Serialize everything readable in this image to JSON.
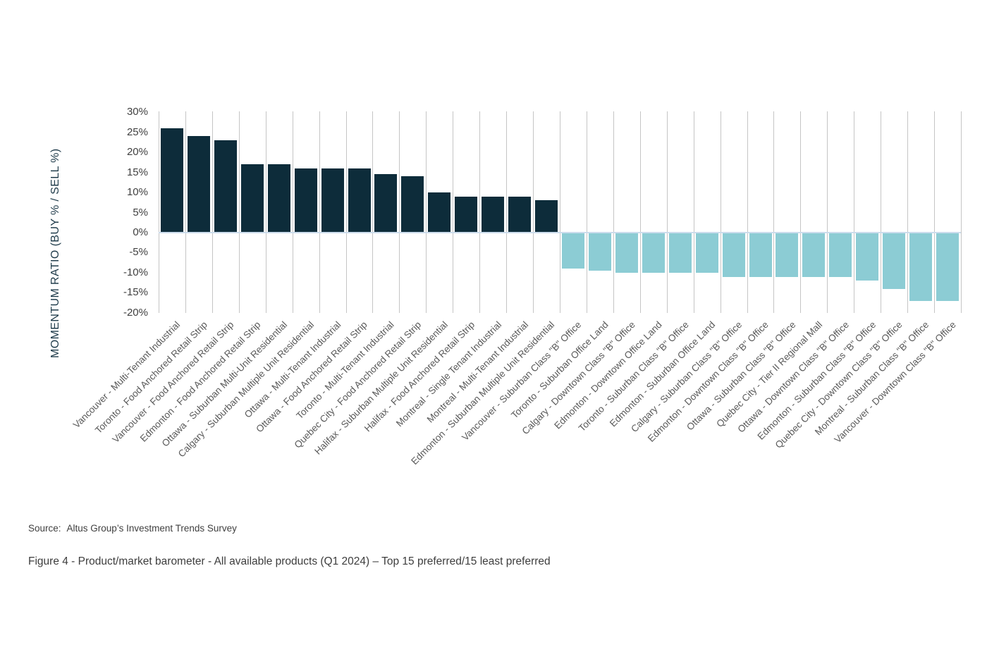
{
  "chart_data": {
    "type": "bar",
    "title": "",
    "xlabel": "",
    "ylabel": "MOMENTUM RATIO (BUY % / SELL %)",
    "ylim": [
      -20,
      30
    ],
    "yticks": [
      30,
      25,
      20,
      15,
      10,
      5,
      0,
      -5,
      -10,
      -15,
      -20
    ],
    "ytick_labels": [
      "30%",
      "25%",
      "20%",
      "15%",
      "10%",
      "5%",
      "0%",
      "-5%",
      "-10%",
      "-15%",
      "-20%"
    ],
    "grid": "vertical-only",
    "legend_position": "none",
    "categories": [
      "Vancouver - Multi-Tenant Industrial",
      "Toronto - Food Anchored Retail Strip",
      "Vancouver - Food Anchored Retail Strip",
      "Edmonton - Food Anchored Retail Strip",
      "Ottawa - Suburban Multi-Unit Residential",
      "Calgary - Suburban Multiple Unit Residential",
      "Ottawa - Multi-Tenant Industrial",
      "Ottawa - Food Anchored Retail Strip",
      "Toronto - Multi-Tenant Industrial",
      "Quebec City - Food Anchored Retail Strip",
      "Halifax - Suburban Multiple Unit Residential",
      "Halifax - Food Anchored Retail Strip",
      "Montreal - Single Tenant Industrial",
      "Montreal - Multi-Tenant Industrial",
      "Edmonton - Suburban Multiple Unit Residential",
      "Vancouver - Suburban Class \"B\" Office",
      "Toronto - Suburban Office Land",
      "Calgary - Downtown Class \"B\" Office",
      "Edmonton - Downtown Office Land",
      "Toronto - Suburban Class \"B\" Office",
      "Edmonton - Suburban Office Land",
      "Calgary - Suburban Class \"B\" Office",
      "Edmonton - Downtown Class \"B\" Office",
      "Ottawa - Suburban Class \"B\" Office",
      "Quebec City - Tier II Regional Mall",
      "Ottawa - Downtown Class \"B\" Office",
      "Edmonton - Suburban Class \"B\" Office",
      "Quebec City - Downtown Class \"B\" Office",
      "Montreal - Suburban Class \"B\" Office",
      "Vancouver - Downtown Class \"B\" Office"
    ],
    "values": [
      26,
      24,
      23,
      17,
      17,
      16,
      16,
      16,
      14.5,
      14,
      10,
      9,
      9,
      9,
      8,
      -9,
      -9.5,
      -10,
      -10,
      -10,
      -10,
      -11,
      -11,
      -11,
      -11,
      -11,
      -12,
      -14,
      -17,
      -17
    ],
    "positive_color": "#0d2c3a",
    "negative_color": "#8cccd4",
    "gridline_color": "#c5c5c5",
    "zero_line_color": "#ccdcec"
  },
  "source": {
    "label": "Source:",
    "text": "Altus Group’s Investment Trends Survey"
  },
  "caption": "Figure 4 - Product/market barometer - All available products (Q1 2024) – Top 15 preferred/15 least preferred"
}
